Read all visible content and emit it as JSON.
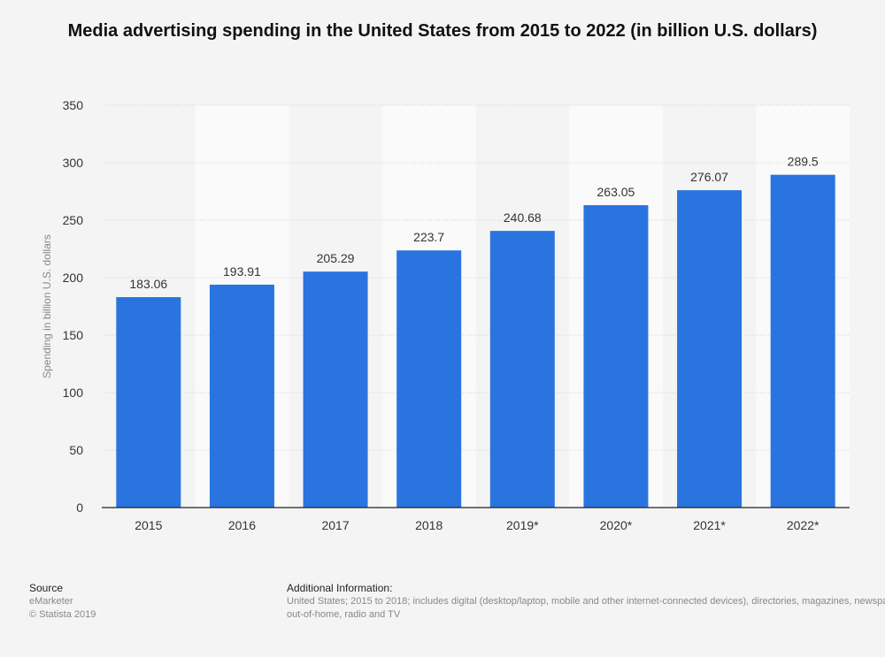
{
  "chart_data": {
    "type": "bar",
    "title": "Media advertising spending in the United States from 2015 to 2022 (in billion U.S. dollars)",
    "ylabel": "Spending in billion U.S. dollars",
    "xlabel": "",
    "categories": [
      "2015",
      "2016",
      "2017",
      "2018",
      "2019*",
      "2020*",
      "2021*",
      "2022*"
    ],
    "values": [
      183.06,
      193.91,
      205.29,
      223.7,
      240.68,
      263.05,
      276.07,
      289.5
    ],
    "value_labels": [
      "183.06",
      "193.91",
      "205.29",
      "223.7",
      "240.68",
      "263.05",
      "276.07",
      "289.5"
    ],
    "ylim": [
      0,
      350
    ],
    "yticks": [
      0,
      50,
      100,
      150,
      200,
      250,
      300,
      350
    ],
    "grid": true,
    "bar_color": "#2a74e0"
  },
  "footer": {
    "source_label": "Source",
    "source_name": "eMarketer",
    "copyright": "© Statista 2019",
    "info_label": "Additional Information:",
    "info_text": "United States; 2015 to 2018; includes digital (desktop/laptop, mobile and other internet-connected devices), directories, magazines, newspapers, out-of-home, radio and TV"
  }
}
